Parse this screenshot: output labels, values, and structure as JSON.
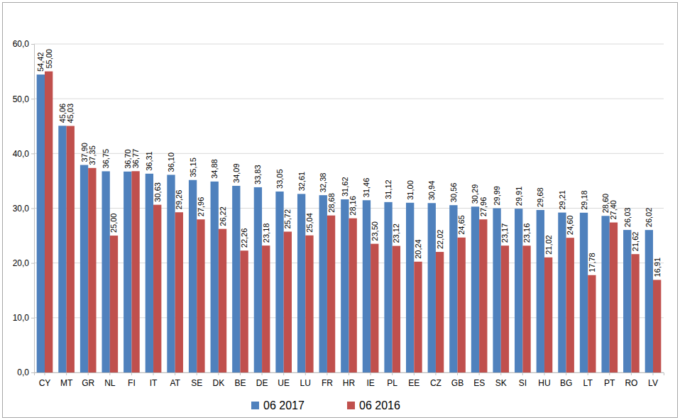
{
  "chart_data": {
    "type": "bar",
    "categories": [
      "CY",
      "MT",
      "GR",
      "NL",
      "FI",
      "IT",
      "AT",
      "SE",
      "DK",
      "BE",
      "DE",
      "UE",
      "LU",
      "FR",
      "HR",
      "IE",
      "PL",
      "EE",
      "CZ",
      "GB",
      "ES",
      "SK",
      "SI",
      "HU",
      "BG",
      "LT",
      "PT",
      "RO",
      "LV"
    ],
    "series": [
      {
        "name": "06 2017",
        "color": "#4f81bd",
        "values": [
          54.42,
          45.06,
          37.9,
          36.75,
          36.7,
          36.31,
          36.1,
          35.15,
          34.88,
          34.09,
          33.83,
          33.05,
          32.61,
          32.38,
          31.62,
          31.46,
          31.12,
          31.0,
          30.94,
          30.56,
          30.29,
          29.99,
          29.91,
          29.68,
          29.21,
          29.18,
          28.6,
          26.03,
          26.02
        ],
        "value_labels": [
          "54,42",
          "45,06",
          "37,90",
          "36,75",
          "36,70",
          "36,31",
          "36,10",
          "35,15",
          "34,88",
          "34,09",
          "33,83",
          "33,05",
          "32,61",
          "32,38",
          "31,62",
          "31,46",
          "31,12",
          "31,00",
          "30,94",
          "30,56",
          "30,29",
          "29,99",
          "29,91",
          "29,68",
          "29,21",
          "29,18",
          "28,60",
          "26,03",
          "26,02"
        ]
      },
      {
        "name": "06 2016",
        "color": "#c0504d",
        "values": [
          55.0,
          45.03,
          37.35,
          25.0,
          36.77,
          30.63,
          29.26,
          27.96,
          26.22,
          22.26,
          23.18,
          25.72,
          25.04,
          28.68,
          28.16,
          23.5,
          23.12,
          20.24,
          22.02,
          24.65,
          27.96,
          23.17,
          23.16,
          21.02,
          24.6,
          17.78,
          27.4,
          21.62,
          16.91
        ],
        "value_labels": [
          "55,00",
          "45,03",
          "37,35",
          "25,00",
          "36,77",
          "30,63",
          "29,26",
          "27,96",
          "26,22",
          "22,26",
          "23,18",
          "25,72",
          "25,04",
          "28,68",
          "28,16",
          "23,50",
          "23,12",
          "20,24",
          "22,02",
          "24,65",
          "27,96",
          "23,17",
          "23,16",
          "21,02",
          "24,60",
          "17,78",
          "27,40",
          "21,62",
          "16,91"
        ]
      }
    ],
    "ylim": [
      0,
      60
    ],
    "yticks": [
      {
        "value": 0,
        "label": "0,0"
      },
      {
        "value": 10,
        "label": "10,0"
      },
      {
        "value": 20,
        "label": "20,0"
      },
      {
        "value": 30,
        "label": "30,0"
      },
      {
        "value": 40,
        "label": "40,0"
      },
      {
        "value": 50,
        "label": "50,0"
      },
      {
        "value": 60,
        "label": "60,0"
      }
    ],
    "grid": true,
    "data_labels": true,
    "legend": "bottom"
  }
}
